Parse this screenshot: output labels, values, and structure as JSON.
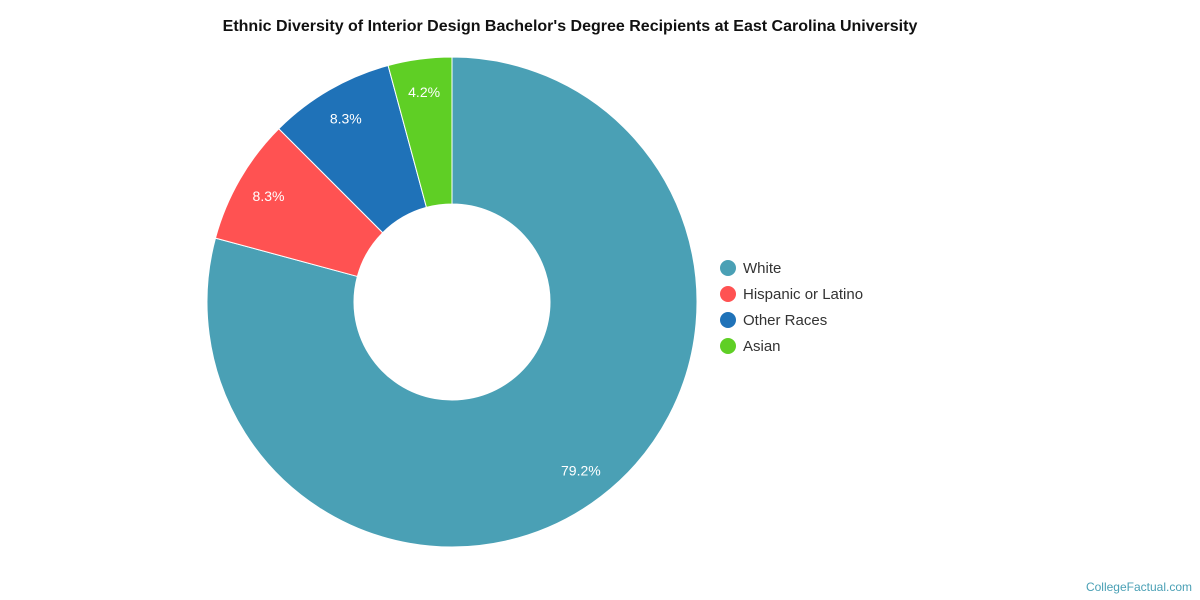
{
  "chart_data": {
    "type": "pie",
    "title": "Ethnic Diversity of Interior Design Bachelor's Degree Recipients at East Carolina University",
    "donut": true,
    "slices": [
      {
        "label": "White",
        "value": 79.2,
        "display": "79.2%",
        "color": "#4aa0b5"
      },
      {
        "label": "Hispanic or Latino",
        "value": 8.3,
        "display": "8.3%",
        "color": "#ff5252"
      },
      {
        "label": "Other Races",
        "value": 8.3,
        "display": "8.3%",
        "color": "#1f72b8"
      },
      {
        "label": "Asian",
        "value": 4.2,
        "display": "4.2%",
        "color": "#5fcf25"
      }
    ],
    "legend_position": "right"
  },
  "watermark": "CollegeFactual.com"
}
